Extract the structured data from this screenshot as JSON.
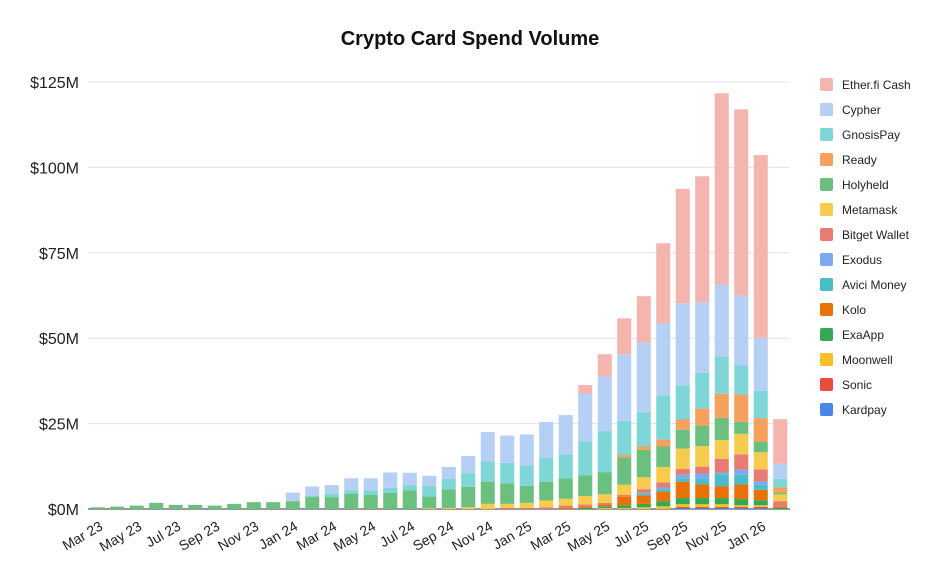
{
  "chart_data": {
    "type": "bar",
    "stacked": true,
    "title": "Crypto Card Spend Volume",
    "xlabel": "",
    "ylabel": "",
    "ylim": [
      0,
      125
    ],
    "y_unit": "$M",
    "y_ticks": [
      "$0M",
      "$25M",
      "$50M",
      "$75M",
      "$100M",
      "$125M"
    ],
    "y_tick_values": [
      0,
      25,
      50,
      75,
      100,
      125
    ],
    "grid": true,
    "legend_position": "right",
    "categories": [
      "Mar 23",
      "Apr 23",
      "May 23",
      "Jun 23",
      "Jul 23",
      "Aug 23",
      "Sep 23",
      "Oct 23",
      "Nov 23",
      "Dec 23",
      "Jan 24",
      "Feb 24",
      "Mar 24",
      "Apr 24",
      "May 24",
      "Jun 24",
      "Jul 24",
      "Aug 24",
      "Sep 24",
      "Oct 24",
      "Nov 24",
      "Dec 24",
      "Jan 25",
      "Feb 25",
      "Mar 25",
      "Apr 25",
      "May 25",
      "Jun 25",
      "Jul 25",
      "Aug 25",
      "Sep 25",
      "Oct 25",
      "Nov 25",
      "Dec 25",
      "Jan 26",
      "Feb 26"
    ],
    "x_tick_labels": [
      "Mar 23",
      "May 23",
      "Jul 23",
      "Sep 23",
      "Nov 23",
      "Jan 24",
      "Mar 24",
      "May 24",
      "Jul 24",
      "Sep 24",
      "Nov 24",
      "Jan 25",
      "Mar 25",
      "May 25",
      "Jul 25",
      "Sep 25",
      "Nov 25",
      "Jan 26"
    ],
    "series": [
      {
        "name": "Kardpay",
        "color": "#4a86e8",
        "values": [
          0,
          0,
          0,
          0,
          0,
          0,
          0,
          0,
          0,
          0,
          0,
          0,
          0,
          0,
          0,
          0,
          0,
          0,
          0,
          0,
          0,
          0,
          0,
          0,
          0,
          0,
          0,
          0,
          0,
          0,
          0.3,
          0.3,
          0.3,
          0.3,
          0.3,
          0
        ]
      },
      {
        "name": "Sonic",
        "color": "#e74c3c",
        "values": [
          0,
          0,
          0,
          0,
          0,
          0,
          0,
          0,
          0,
          0,
          0,
          0,
          0,
          0,
          0,
          0,
          0,
          0,
          0,
          0,
          0,
          0,
          0,
          0,
          0,
          0,
          0,
          0,
          0,
          0,
          0.3,
          0.3,
          0.3,
          0.3,
          0.3,
          0
        ]
      },
      {
        "name": "Moonwell",
        "color": "#f6c026",
        "values": [
          0,
          0,
          0,
          0,
          0,
          0,
          0,
          0,
          0,
          0,
          0,
          0,
          0,
          0,
          0,
          0,
          0,
          0,
          0,
          0,
          0,
          0,
          0,
          0,
          0,
          0,
          0.3,
          0.3,
          0.5,
          0.8,
          0.8,
          0.8,
          0.8,
          0.5,
          0.5,
          0
        ]
      },
      {
        "name": "ExaApp",
        "color": "#34a853",
        "values": [
          0,
          0,
          0,
          0,
          0,
          0,
          0,
          0,
          0,
          0,
          0,
          0,
          0,
          0,
          0,
          0,
          0,
          0,
          0,
          0,
          0,
          0,
          0,
          0,
          0,
          0.3,
          0.5,
          0.8,
          1.0,
          1.5,
          1.8,
          1.8,
          1.8,
          1.8,
          1.5,
          0.3
        ]
      },
      {
        "name": "Kolo",
        "color": "#e8710a",
        "values": [
          0,
          0,
          0,
          0,
          0,
          0,
          0,
          0,
          0,
          0,
          0,
          0,
          0,
          0,
          0,
          0,
          0,
          0,
          0,
          0,
          0,
          0,
          0,
          0,
          0.5,
          0.5,
          0.5,
          2.5,
          2.5,
          2.8,
          4.8,
          4.0,
          3.5,
          4.3,
          3.0,
          0.5
        ]
      },
      {
        "name": "Avici Money",
        "color": "#4bbdca",
        "values": [
          0,
          0,
          0,
          0,
          0,
          0,
          0,
          0,
          0,
          0,
          0,
          0,
          0,
          0,
          0,
          0,
          0,
          0,
          0,
          0,
          0,
          0,
          0,
          0,
          0,
          0,
          0,
          0,
          0.5,
          0.7,
          1.0,
          1.7,
          3.5,
          2.8,
          1.5,
          0
        ]
      },
      {
        "name": "Exodus",
        "color": "#7baaf0",
        "values": [
          0,
          0,
          0,
          0,
          0,
          0,
          0,
          0,
          0,
          0,
          0,
          0,
          0,
          0,
          0,
          0,
          0,
          0,
          0,
          0,
          0,
          0,
          0,
          0,
          0,
          0,
          0,
          0,
          0.3,
          0.5,
          1.0,
          1.5,
          0.5,
          1.5,
          1.0,
          0
        ]
      },
      {
        "name": "Bitget Wallet",
        "color": "#e67c73",
        "values": [
          0,
          0,
          0,
          0,
          0,
          0,
          0,
          0,
          0,
          0,
          0,
          0,
          0,
          0,
          0,
          0,
          0,
          0,
          0,
          0,
          0,
          0.3,
          0.3,
          0.5,
          0.5,
          0.5,
          0.5,
          0.5,
          1.0,
          1.5,
          1.7,
          2.0,
          4.0,
          4.5,
          3.5,
          1.5
        ]
      },
      {
        "name": "Metamask",
        "color": "#f7cb4d",
        "values": [
          0,
          0,
          0,
          0,
          0,
          0,
          0,
          0,
          0,
          0,
          0,
          0,
          0,
          0,
          0,
          0,
          0,
          0.2,
          0.3,
          0.5,
          1.5,
          1.2,
          1.5,
          2.0,
          2.0,
          2.5,
          2.5,
          3.0,
          3.5,
          4.5,
          6.0,
          6.0,
          5.5,
          6.0,
          5.0,
          2.0
        ]
      },
      {
        "name": "Holyheld",
        "color": "#6cc07f",
        "values": [
          0.5,
          0.7,
          1.0,
          1.8,
          1.2,
          1.2,
          1.0,
          1.5,
          2.0,
          2.0,
          2.3,
          3.5,
          3.5,
          4.5,
          4.2,
          4.7,
          5.5,
          3.5,
          5.5,
          6.0,
          6.5,
          6.0,
          5.0,
          5.5,
          6.0,
          6.0,
          6.5,
          8.0,
          8.0,
          6.0,
          5.5,
          6.0,
          6.5,
          3.5,
          3.0,
          0.5
        ]
      },
      {
        "name": "Ready",
        "color": "#f6a05d",
        "values": [
          0,
          0,
          0,
          0,
          0,
          0,
          0,
          0,
          0,
          0,
          0,
          0,
          0,
          0,
          0,
          0,
          0,
          0,
          0,
          0,
          0,
          0,
          0,
          0,
          0,
          0,
          0,
          0.7,
          1.0,
          2.0,
          3.0,
          5.0,
          7.0,
          8.0,
          7.0,
          1.5
        ]
      },
      {
        "name": "GnosisPay",
        "color": "#7fd6d6",
        "values": [
          0,
          0,
          0,
          0,
          0,
          0,
          0,
          0,
          0,
          0,
          0,
          0.3,
          1.0,
          1.0,
          1.2,
          1.5,
          1.5,
          3.0,
          3.0,
          4.0,
          6.0,
          6.0,
          6.0,
          7.0,
          7.0,
          10.0,
          12.0,
          10.0,
          10.0,
          13.0,
          10.0,
          10.5,
          11.0,
          8.5,
          8.0,
          2.5
        ]
      },
      {
        "name": "Cypher",
        "color": "#b6cff5",
        "values": [
          0,
          0,
          0,
          0,
          0,
          0,
          0,
          0,
          0,
          0,
          2.5,
          2.8,
          2.5,
          3.5,
          3.6,
          4.5,
          3.6,
          3.0,
          3.5,
          5.0,
          8.5,
          8.0,
          9.0,
          10.5,
          11.5,
          14.0,
          16.0,
          19.5,
          20.5,
          21.0,
          24.0,
          20.5,
          21.0,
          20.5,
          15.5,
          4.5
        ]
      },
      {
        "name": "Ether.fi Cash",
        "color": "#f4b5ae",
        "values": [
          0,
          0,
          0,
          0,
          0,
          0,
          0,
          0,
          0,
          0,
          0,
          0,
          0,
          0,
          0,
          0,
          0,
          0,
          0,
          0,
          0,
          0,
          0,
          0,
          0,
          2.5,
          6.5,
          10.5,
          13.5,
          23.5,
          33.5,
          37.0,
          56.0,
          54.5,
          53.5,
          13.0
        ]
      }
    ]
  }
}
